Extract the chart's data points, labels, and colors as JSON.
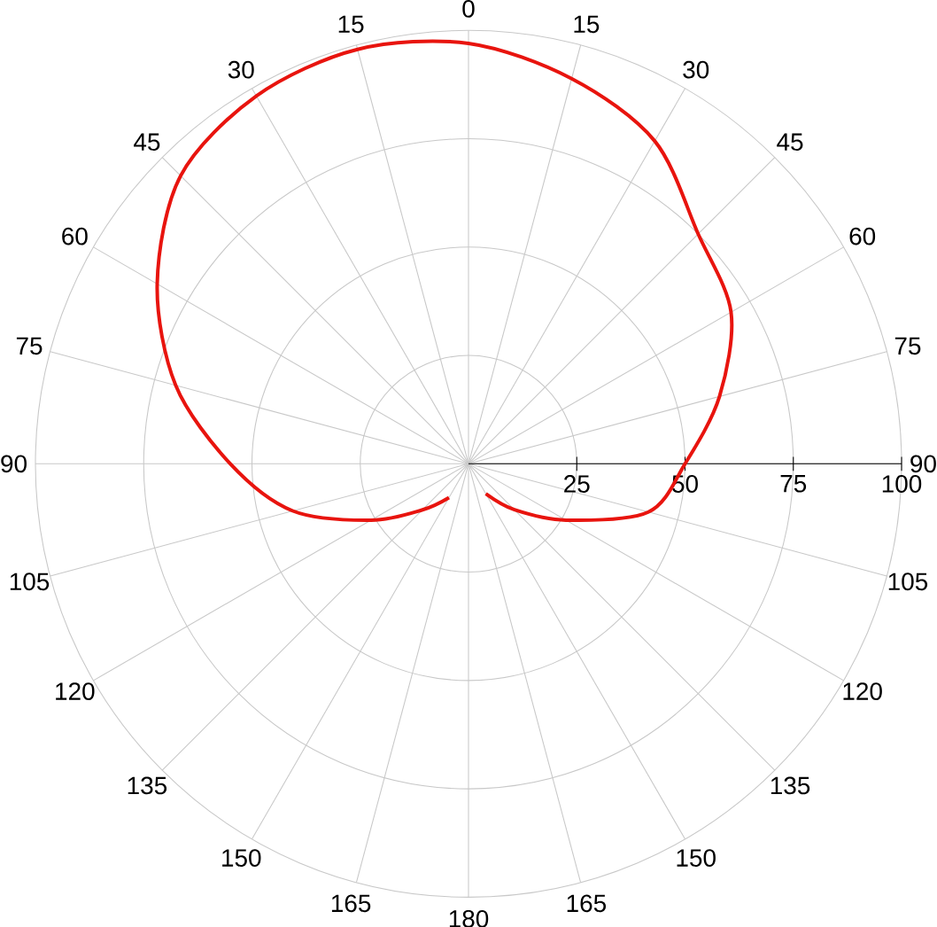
{
  "chart_data": {
    "type": "radar",
    "categories": [
      "0",
      "15",
      "30",
      "45",
      "60",
      "75",
      "90",
      "105",
      "120",
      "135",
      "150",
      "165",
      "180",
      "165",
      "150",
      "135",
      "120",
      "105",
      "90",
      "75",
      "60",
      "45",
      "30",
      "15"
    ],
    "series": [
      {
        "color": "#e8140e",
        "values": [
          97,
          92,
          86,
          75,
          70,
          60,
          50,
          43,
          26,
          15,
          8,
          null,
          null,
          null,
          9,
          15,
          26,
          42,
          55,
          70,
          83,
          94,
          98,
          99
        ]
      }
    ],
    "ylim": [
      0,
      100
    ],
    "yticks": [
      25,
      50,
      75,
      100
    ],
    "grid": true
  }
}
